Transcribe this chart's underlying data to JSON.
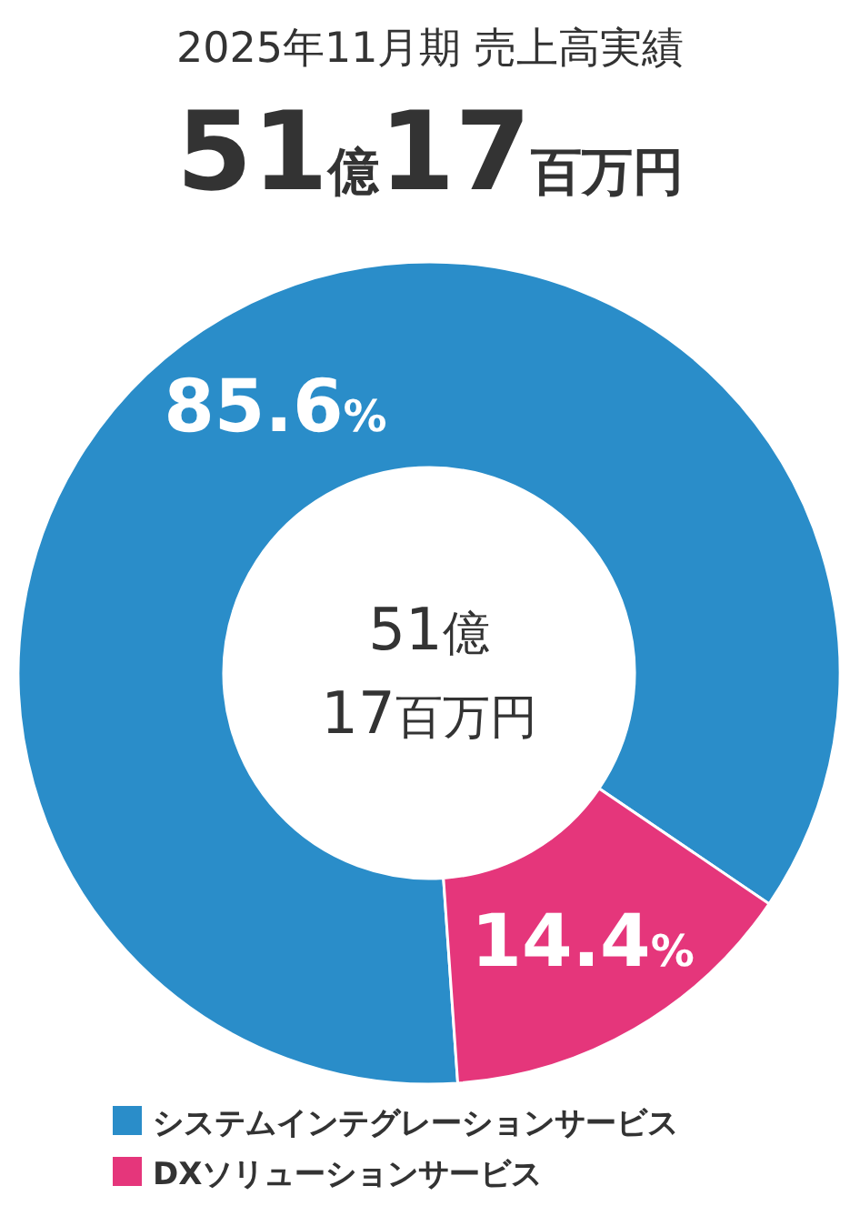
{
  "chart_data": {
    "type": "donut",
    "title": "2025年11月期 売上高実績",
    "subtitle": "51億17百万円",
    "categories": [
      "システムインテグレーションサービス",
      "DXソリューションサービス"
    ],
    "values": [
      85.6,
      14.4
    ],
    "colors": [
      "#2a8dc9",
      "#e5367b"
    ],
    "value_labels": [
      "85.6%",
      "14.4%"
    ],
    "annotations": [
      "51億",
      "17百万円"
    ],
    "legend": "bottom"
  }
}
